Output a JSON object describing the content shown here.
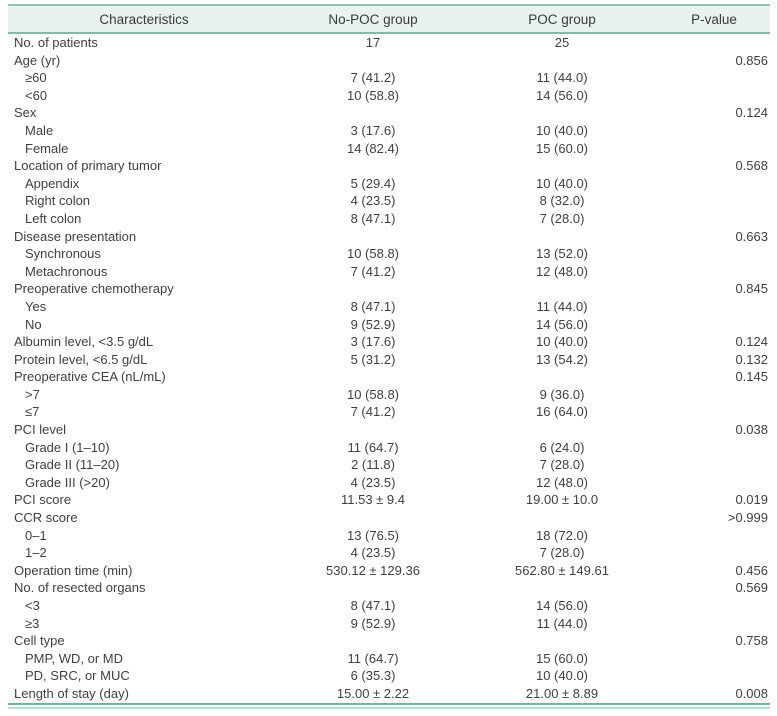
{
  "table": {
    "headers": {
      "characteristics": "Characteristics",
      "nopoc": "No-POC group",
      "poc": "POC group",
      "pvalue": "P-value"
    },
    "rows": [
      {
        "label": "No. of patients",
        "indent": false,
        "nopoc": "17",
        "poc": "25",
        "pvalue": ""
      },
      {
        "label": "Age (yr)",
        "indent": false,
        "nopoc": "",
        "poc": "",
        "pvalue": "0.856"
      },
      {
        "label": "≥60",
        "indent": true,
        "nopoc": "7 (41.2)",
        "poc": "11 (44.0)",
        "pvalue": ""
      },
      {
        "label": "<60",
        "indent": true,
        "nopoc": "10 (58.8)",
        "poc": "14 (56.0)",
        "pvalue": ""
      },
      {
        "label": "Sex",
        "indent": false,
        "nopoc": "",
        "poc": "",
        "pvalue": "0.124"
      },
      {
        "label": "Male",
        "indent": true,
        "nopoc": "3 (17.6)",
        "poc": "10 (40.0)",
        "pvalue": ""
      },
      {
        "label": "Female",
        "indent": true,
        "nopoc": "14 (82.4)",
        "poc": "15 (60.0)",
        "pvalue": ""
      },
      {
        "label": "Location of primary tumor",
        "indent": false,
        "nopoc": "",
        "poc": "",
        "pvalue": "0.568"
      },
      {
        "label": "Appendix",
        "indent": true,
        "nopoc": "5 (29.4)",
        "poc": "10 (40.0)",
        "pvalue": ""
      },
      {
        "label": "Right colon",
        "indent": true,
        "nopoc": "4 (23.5)",
        "poc": "8 (32.0)",
        "pvalue": ""
      },
      {
        "label": "Left colon",
        "indent": true,
        "nopoc": "8 (47.1)",
        "poc": "7 (28.0)",
        "pvalue": ""
      },
      {
        "label": "Disease presentation",
        "indent": false,
        "nopoc": "",
        "poc": "",
        "pvalue": "0.663"
      },
      {
        "label": "Synchronous",
        "indent": true,
        "nopoc": "10 (58.8)",
        "poc": "13 (52.0)",
        "pvalue": ""
      },
      {
        "label": "Metachronous",
        "indent": true,
        "nopoc": "7 (41.2)",
        "poc": "12 (48.0)",
        "pvalue": ""
      },
      {
        "label": "Preoperative chemotherapy",
        "indent": false,
        "nopoc": "",
        "poc": "",
        "pvalue": "0.845"
      },
      {
        "label": "Yes",
        "indent": true,
        "nopoc": "8 (47.1)",
        "poc": "11 (44.0)",
        "pvalue": ""
      },
      {
        "label": "No",
        "indent": true,
        "nopoc": "9 (52.9)",
        "poc": "14 (56.0)",
        "pvalue": ""
      },
      {
        "label": "Albumin level, <3.5 g/dL",
        "indent": false,
        "nopoc": "3 (17.6)",
        "poc": "10 (40.0)",
        "pvalue": "0.124"
      },
      {
        "label": "Protein level, <6.5 g/dL",
        "indent": false,
        "nopoc": "5 (31.2)",
        "poc": "13 (54.2)",
        "pvalue": "0.132"
      },
      {
        "label": "Preoperative CEA (nL/mL)",
        "indent": false,
        "nopoc": "",
        "poc": "",
        "pvalue": "0.145"
      },
      {
        "label": ">7",
        "indent": true,
        "nopoc": "10 (58.8)",
        "poc": "9 (36.0)",
        "pvalue": ""
      },
      {
        "label": "≤7",
        "indent": true,
        "nopoc": "7 (41.2)",
        "poc": "16 (64.0)",
        "pvalue": ""
      },
      {
        "label": "PCI level",
        "indent": false,
        "nopoc": "",
        "poc": "",
        "pvalue": "0.038"
      },
      {
        "label": "Grade I (1–10)",
        "indent": true,
        "nopoc": "11 (64.7)",
        "poc": "6 (24.0)",
        "pvalue": ""
      },
      {
        "label": "Grade II (11–20)",
        "indent": true,
        "nopoc": "2 (11.8)",
        "poc": "7 (28.0)",
        "pvalue": ""
      },
      {
        "label": "Grade III (>20)",
        "indent": true,
        "nopoc": "4 (23.5)",
        "poc": "12 (48.0)",
        "pvalue": ""
      },
      {
        "label": "PCI score",
        "indent": false,
        "nopoc": "11.53 ± 9.4",
        "poc": "19.00 ± 10.0",
        "pvalue": "0.019"
      },
      {
        "label": "CCR score",
        "indent": false,
        "nopoc": "",
        "poc": "",
        "pvalue": ">0.999"
      },
      {
        "label": "0–1",
        "indent": true,
        "nopoc": "13 (76.5)",
        "poc": "18 (72.0)",
        "pvalue": ""
      },
      {
        "label": "1–2",
        "indent": true,
        "nopoc": "4 (23.5)",
        "poc": "7 (28.0)",
        "pvalue": ""
      },
      {
        "label": "Operation time (min)",
        "indent": false,
        "nopoc": "530.12 ± 129.36",
        "poc": "562.80 ± 149.61",
        "pvalue": "0.456"
      },
      {
        "label": "No. of resected organs",
        "indent": false,
        "nopoc": "",
        "poc": "",
        "pvalue": "0.569"
      },
      {
        "label": "<3",
        "indent": true,
        "nopoc": "8 (47.1)",
        "poc": "14 (56.0)",
        "pvalue": ""
      },
      {
        "label": "≥3",
        "indent": true,
        "nopoc": "9 (52.9)",
        "poc": "11 (44.0)",
        "pvalue": ""
      },
      {
        "label": "Cell type",
        "indent": false,
        "nopoc": "",
        "poc": "",
        "pvalue": "0.758"
      },
      {
        "label": "PMP, WD, or MD",
        "indent": true,
        "nopoc": "11 (64.7)",
        "poc": "15 (60.0)",
        "pvalue": ""
      },
      {
        "label": "PD, SRC, or MUC",
        "indent": true,
        "nopoc": "6 (35.3)",
        "poc": "10 (40.0)",
        "pvalue": ""
      },
      {
        "label": "Length of stay (day)",
        "indent": false,
        "nopoc": "15.00 ± 2.22",
        "poc": "21.00 ± 8.89",
        "pvalue": "0.008"
      }
    ]
  },
  "colors": {
    "accent_teal_top": "#8cc3b4",
    "accent_teal_header_rule": "#7dbcab",
    "accent_teal_bottom": "#6fb3a1",
    "accent_teal_bottom_light": "#bedcd3",
    "header_background": "#e8f3ee",
    "text": "#3f3f3f"
  }
}
